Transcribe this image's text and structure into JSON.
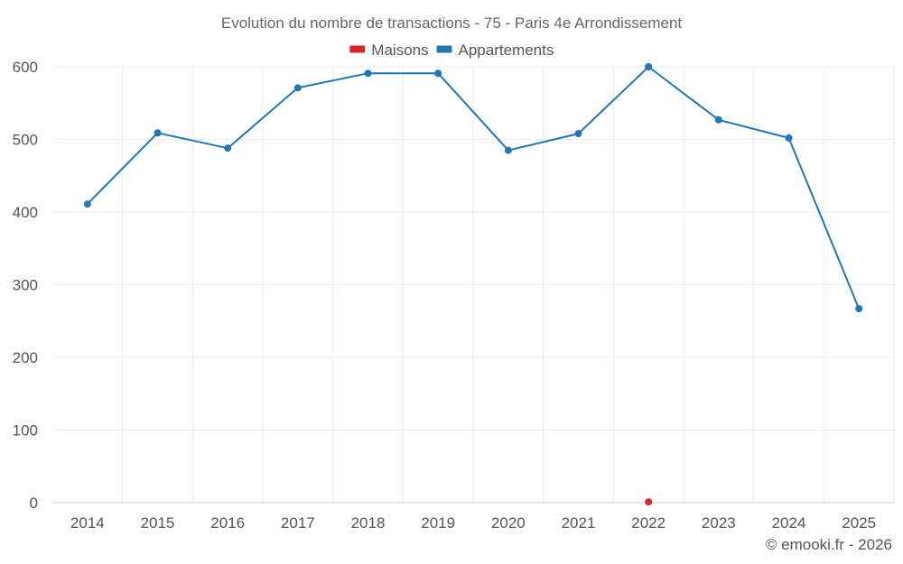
{
  "chart_data": {
    "type": "line",
    "title": "Evolution du nombre de transactions - 75 - Paris 4e Arrondissement",
    "xlabel": "",
    "ylabel": "",
    "categories": [
      "2014",
      "2015",
      "2016",
      "2017",
      "2018",
      "2019",
      "2020",
      "2021",
      "2022",
      "2023",
      "2024",
      "2025"
    ],
    "ylim": [
      0,
      600
    ],
    "yticks": [
      0,
      100,
      200,
      300,
      400,
      500,
      600
    ],
    "grid": true,
    "legend_position": "top-center",
    "series": [
      {
        "name": "Maisons",
        "color": "#d62728",
        "values": [
          null,
          null,
          null,
          null,
          null,
          null,
          null,
          null,
          1,
          null,
          null,
          null
        ]
      },
      {
        "name": "Appartements",
        "color": "#1f77b4",
        "values": [
          411,
          509,
          488,
          571,
          591,
          591,
          485,
          508,
          600,
          527,
          502,
          267
        ]
      }
    ]
  },
  "footer": {
    "copyright": "© emooki.fr - 2026"
  }
}
